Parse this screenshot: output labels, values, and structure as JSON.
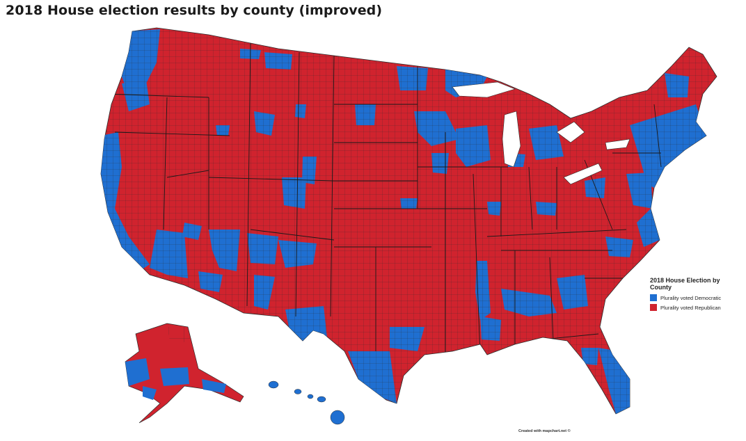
{
  "title": "2018 House election results by county (improved)",
  "legend": {
    "title": "2018 House Election by County",
    "items": [
      {
        "label": "Plurality voted Democratic",
        "color": "#1f6fd1"
      },
      {
        "label": "Plurality voted Republican",
        "color": "#d0232e"
      }
    ]
  },
  "colors": {
    "democratic": "#1f6fd1",
    "republican": "#d0232e",
    "border": "#2b2b2b"
  },
  "credit": "Created with mapchart.net ©"
}
